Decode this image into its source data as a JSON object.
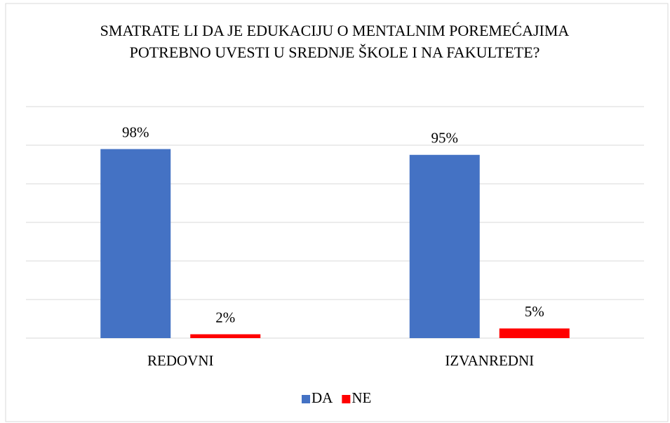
{
  "chart_data": {
    "type": "bar",
    "title": "SMATRATE LI DA JE EDUKACIJU O MENTALNIM POREMEĆAJIMA POTREBNO UVESTI U SREDNJE ŠKOLE I NA FAKULTETE?",
    "categories": [
      "REDOVNI",
      "IZVANREDNI"
    ],
    "series": [
      {
        "name": "DA",
        "color": "#4472c4",
        "values": [
          98,
          95
        ],
        "value_labels": [
          "98%",
          "95%"
        ]
      },
      {
        "name": "NE",
        "color": "#ff0000",
        "values": [
          2,
          5
        ],
        "value_labels": [
          "2%",
          "5%"
        ]
      }
    ],
    "ylim": [
      0,
      120
    ],
    "yticks": [
      0,
      20,
      40,
      60,
      80,
      100,
      120
    ],
    "grid": true,
    "legend": "bottom"
  }
}
